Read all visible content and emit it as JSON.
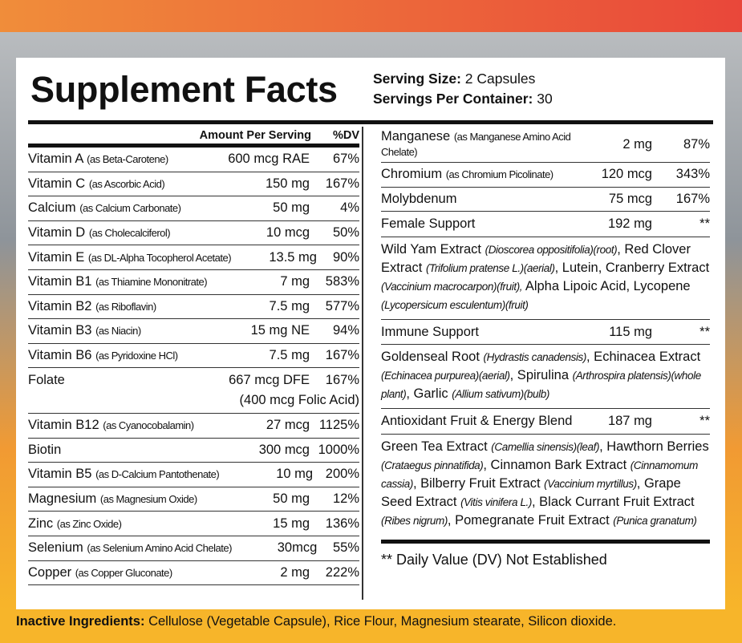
{
  "header": {
    "title": "Supplement Facts",
    "serving_size_label": "Serving Size:",
    "serving_size": "2 Capsules",
    "servings_label": "Servings Per Container:",
    "servings": "30"
  },
  "left": {
    "amount_header": "Amount Per Serving",
    "dv_header": "%DV",
    "rows": [
      {
        "name": "Vitamin A",
        "source": "(as Beta-Carotene)",
        "amount": "600 mcg RAE",
        "dv": "67%"
      },
      {
        "name": "Vitamin C",
        "source": "(as Ascorbic Acid)",
        "amount": "150 mg",
        "dv": "167%"
      },
      {
        "name": "Calcium",
        "source": "(as Calcium Carbonate)",
        "amount": "50 mg",
        "dv": "4%"
      },
      {
        "name": "Vitamin D",
        "source": "(as Cholecalciferol)",
        "amount": "10 mcg",
        "dv": "50%"
      },
      {
        "name": "Vitamin E",
        "source": "(as DL-Alpha Tocopherol Acetate)",
        "amount": "13.5 mg",
        "dv": "90%"
      },
      {
        "name": "Vitamin B1",
        "source": "(as Thiamine Mononitrate)",
        "amount": "7 mg",
        "dv": "583%"
      },
      {
        "name": "Vitamin B2",
        "source": "(as Riboflavin)",
        "amount": "7.5 mg",
        "dv": "577%"
      },
      {
        "name": "Vitamin B3",
        "source": "(as Niacin)",
        "amount": "15 mg NE",
        "dv": "94%"
      },
      {
        "name": "Vitamin B6",
        "source": "(as Pyridoxine HCl)",
        "amount": "7.5 mg",
        "dv": "167%"
      },
      {
        "name": "Folate",
        "amount": "667 mcg DFE",
        "dv": "167%",
        "note": "(400 mcg Folic Acid)"
      },
      {
        "name": "Vitamin B12",
        "source": "(as Cyanocobalamin)",
        "amount": "27 mcg",
        "dv": "1125%"
      },
      {
        "name": "Biotin",
        "amount": "300 mcg",
        "dv": "1000%"
      },
      {
        "name": "Vitamin B5",
        "source": "(as D-Calcium Pantothenate)",
        "amount": "10 mg",
        "dv": "200%"
      },
      {
        "name": "Magnesium",
        "source": "(as Magnesium Oxide)",
        "amount": "50 mg",
        "dv": "12%"
      },
      {
        "name": "Zinc",
        "source": "(as Zinc Oxide)",
        "amount": "15 mg",
        "dv": "136%"
      },
      {
        "name": "Selenium",
        "source": "(as Selenium Amino Acid Chelate)",
        "amount": "30mcg",
        "dv": "55%"
      },
      {
        "name": "Copper",
        "source": "(as Copper Gluconate)",
        "amount": "2 mg",
        "dv": "222%"
      }
    ]
  },
  "right": {
    "rows": [
      {
        "name": "Manganese",
        "source": "(as Manganese Amino Acid Chelate)",
        "amount": "2 mg",
        "dv": "87%"
      },
      {
        "name": "Chromium",
        "source": "(as Chromium Picolinate)",
        "amount": "120 mcg",
        "dv": "343%"
      },
      {
        "name": "Molybdenum",
        "amount": "75 mcg",
        "dv": "167%"
      },
      {
        "name": "Female Support",
        "amount": "192 mg",
        "dv": "**",
        "description": [
          {
            "text": "Wild Yam Extract "
          },
          {
            "text": "(Dioscorea oppositifolia)(root)",
            "italic": true
          },
          {
            "text": ", Red Clover Extract "
          },
          {
            "text": "(Trifolium pratense L.)(aerial)",
            "italic": true
          },
          {
            "text": ", Lutein, Cranberry Extract "
          },
          {
            "text": "(Vaccinium macrocarpon)(fruit),",
            "italic": true
          },
          {
            "text": " Alpha Lipoic Acid, Lycopene "
          },
          {
            "text": "(Lycopersicum esculentum)(fruit)",
            "italic": true
          }
        ]
      },
      {
        "name": "Immune Support",
        "amount": "115 mg",
        "dv": "**",
        "description": [
          {
            "text": "Goldenseal Root "
          },
          {
            "text": "(Hydrastis canadensis)",
            "italic": true
          },
          {
            "text": ", Echinacea Extract "
          },
          {
            "text": "(Echinacea purpurea)(aerial)",
            "italic": true
          },
          {
            "text": ", Spirulina "
          },
          {
            "text": "(Arthrospira platensis)(whole plant)",
            "italic": true
          },
          {
            "text": ", Garlic "
          },
          {
            "text": "(Allium sativum)(bulb)",
            "italic": true
          }
        ]
      },
      {
        "name": "Antioxidant Fruit & Energy Blend",
        "amount": "187 mg",
        "dv": "**",
        "description": [
          {
            "text": "Green Tea Extract "
          },
          {
            "text": "(Camellia sinensis)(leaf)",
            "italic": true
          },
          {
            "text": ", Hawthorn Berries "
          },
          {
            "text": "(Crataegus pinnatifida)",
            "italic": true
          },
          {
            "text": ", Cinnamon Bark Extract "
          },
          {
            "text": "(Cinnamomum cassia)",
            "italic": true
          },
          {
            "text": ", Bilberry Fruit Extract "
          },
          {
            "text": "(Vaccinium myrtillus)",
            "italic": true
          },
          {
            "text": ", Grape Seed Extract "
          },
          {
            "text": "(Vitis vinifera L.)",
            "italic": true
          },
          {
            "text": ", Black Currant Fruit Extract "
          },
          {
            "text": "(Ribes nigrum)",
            "italic": true
          },
          {
            "text": ", Pomegranate Fruit Extract "
          },
          {
            "text": "(Punica granatum)",
            "italic": true
          }
        ]
      }
    ],
    "footnote": "** Daily Value (DV) Not Established"
  },
  "inactive": {
    "label": "Inactive Ingredients:",
    "text": "Cellulose (Vegetable Capsule), Rice Flour, Magnesium stearate, Silicon dioxide."
  }
}
